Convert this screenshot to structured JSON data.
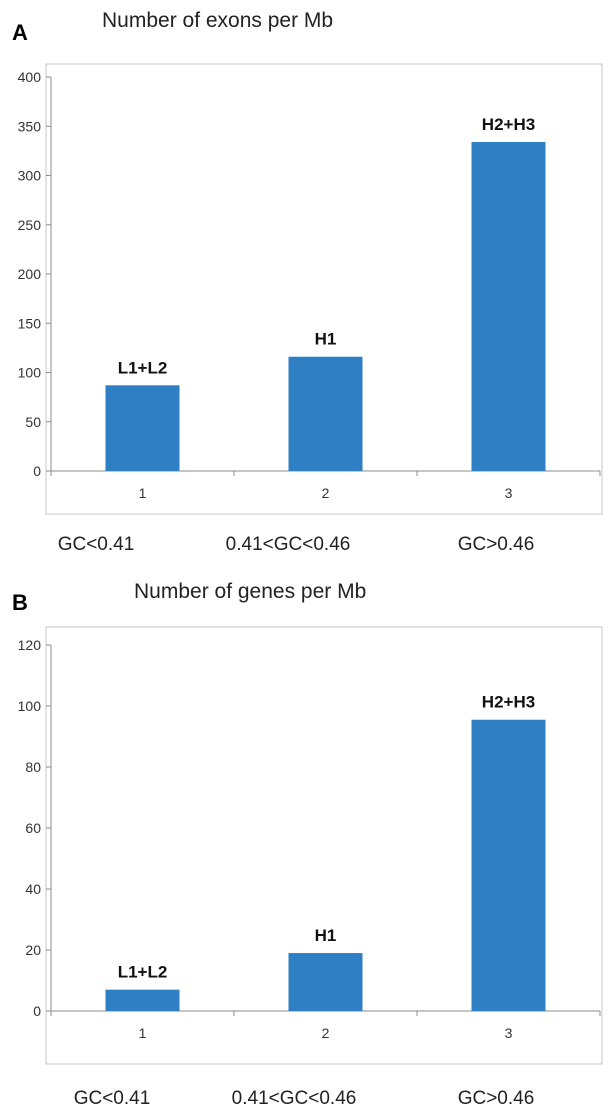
{
  "chart_data": [
    {
      "panel": "A",
      "type": "bar",
      "title": "Number of exons per Mb",
      "categories": [
        "1",
        "2",
        "3"
      ],
      "values": [
        87,
        116,
        334
      ],
      "bar_labels": [
        "L1+L2",
        "H1",
        "H2+H3"
      ],
      "group_labels": [
        "GC<0.41",
        "0.41<GC<0.46",
        "GC>0.46"
      ],
      "ylim": [
        0,
        400
      ],
      "yticks": [
        0,
        50,
        100,
        150,
        200,
        250,
        300,
        350,
        400
      ],
      "grid": false,
      "bar_color": "#2f7fc5"
    },
    {
      "panel": "B",
      "type": "bar",
      "title": "Number of genes per Mb",
      "categories": [
        "1",
        "2",
        "3"
      ],
      "values": [
        7,
        19,
        95.5
      ],
      "bar_labels": [
        "L1+L2",
        "H1",
        "H2+H3"
      ],
      "group_labels": [
        "GC<0.41",
        "0.41<GC<0.46",
        "GC>0.46"
      ],
      "ylim": [
        0,
        120
      ],
      "yticks": [
        0,
        20,
        40,
        60,
        80,
        100,
        120
      ],
      "grid": false,
      "bar_color": "#2f7fc5"
    }
  ]
}
